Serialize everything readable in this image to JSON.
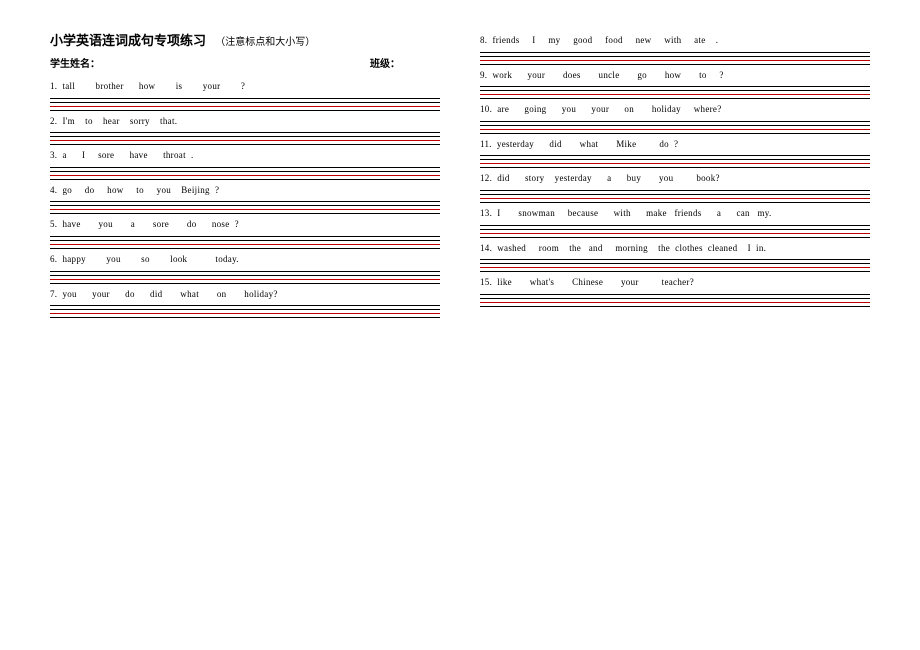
{
  "title": "小学英语连词成句专项练习",
  "note": "（注意标点和大小写）",
  "meta": {
    "name_label": "学生姓名：",
    "class_label": "班级："
  },
  "colors": {
    "black": "#000000",
    "red": "#c00000",
    "bg": "#ffffff"
  },
  "line_pattern": [
    "black",
    "black",
    "red",
    "black"
  ],
  "left": [
    {
      "n": "1.",
      "words": "tall        brother      how        is        your        ?"
    },
    {
      "n": "2.",
      "words": "I'm    to    hear    sorry    that."
    },
    {
      "n": "3.",
      "words": "a      I     sore      have      throat  ."
    },
    {
      "n": "4.",
      "words": "go     do     how     to     you    Beijing  ?"
    },
    {
      "n": "5.",
      "words": "have       you       a       sore       do      nose  ?"
    },
    {
      "n": "6.",
      "words": "happy        you        so        look           today."
    },
    {
      "n": "7.",
      "words": "you      your      do      did       what       on       holiday?"
    }
  ],
  "right": [
    {
      "n": "8.",
      "words": "friends     I     my     good     food     new     with     ate    ."
    },
    {
      "n": "9.",
      "words": "work      your       does       uncle       go       how       to     ?"
    },
    {
      "n": "10.",
      "words": "are      going      you      your      on       holiday     where?"
    },
    {
      "n": "11.",
      "words": "yesterday      did       what       Mike         do  ?"
    },
    {
      "n": "12.",
      "words": "did      story    yesterday      a      buy       you         book?"
    },
    {
      "n": "13.",
      "words": "I       snowman     because      with      make   friends      a      can   my."
    },
    {
      "n": "14.",
      "words": "washed     room    the   and     morning    the  clothes  cleaned    I  in."
    },
    {
      "n": "15.",
      "words": "like       what's       Chinese       your         teacher?"
    }
  ]
}
